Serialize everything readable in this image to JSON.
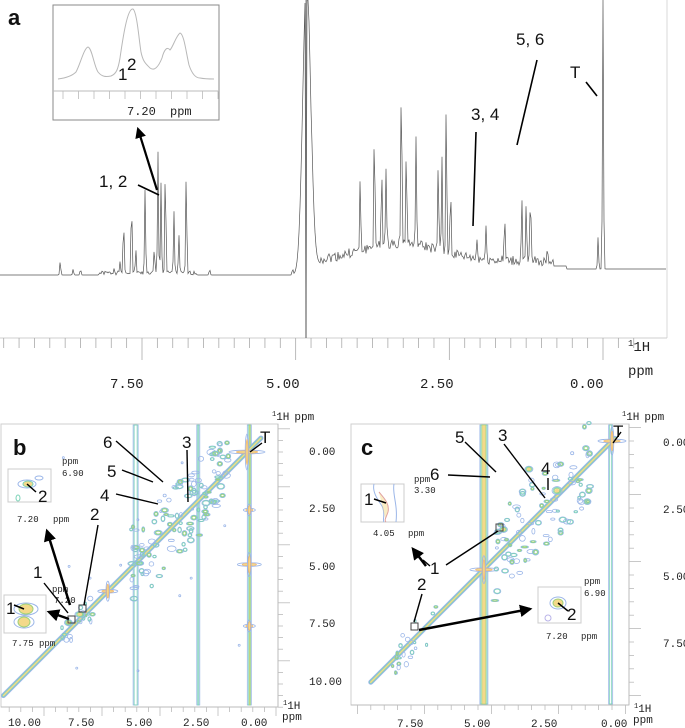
{
  "figure": {
    "panels": [
      {
        "id": "a",
        "label": "a",
        "type": "1D 1H NMR spectrum"
      },
      {
        "id": "b",
        "label": "b",
        "type": "2D 1H-1H COSY/TOCSY contour map"
      },
      {
        "id": "c",
        "label": "c",
        "type": "2D 1H-1H COSY/TOCSY contour map"
      }
    ],
    "colors": {
      "spectrum_line": "#555555",
      "axis": "#aaaaaa",
      "contour_outer": "#9bb6e8",
      "contour_mid": "#7dd3b8",
      "contour_green": "#9fd07a",
      "contour_inner": "#f3d98a",
      "contour_core": "#f0b070",
      "annotation": "#111111"
    }
  },
  "chart_data": [
    {
      "panel": "a",
      "type": "line",
      "title": "",
      "xlabel": "1H ppm",
      "ylabel": "",
      "x_axis_reversed": true,
      "xlim": [
        9.6,
        -0.5
      ],
      "x_ticks": [
        "7.50",
        "5.00",
        "2.50",
        "0.00"
      ],
      "x_unit_label_top": "1H",
      "x_unit_label_bottom": "ppm",
      "annotations": [
        {
          "text": "1, 2",
          "ppm": 7.2
        },
        {
          "text": "3, 4",
          "ppm": 2.05
        },
        {
          "text": "5, 6",
          "ppm": 1.3
        },
        {
          "text": "T",
          "ppm": 0.0
        }
      ],
      "peaks": [
        {
          "ppm": 8.83,
          "h": 0.07
        },
        {
          "ppm": 8.62,
          "h": 0.03
        },
        {
          "ppm": 8.5,
          "h": 0.03
        },
        {
          "ppm": 7.95,
          "h": 0.03
        },
        {
          "ppm": 7.86,
          "h": 0.05
        },
        {
          "ppm": 7.8,
          "h": 0.28
        },
        {
          "ppm": 7.67,
          "h": 0.38
        },
        {
          "ppm": 7.6,
          "h": 0.12
        },
        {
          "ppm": 7.45,
          "h": 0.43
        },
        {
          "ppm": 7.3,
          "h": 0.12
        },
        {
          "ppm": 7.24,
          "h": 0.6
        },
        {
          "ppm": 7.19,
          "h": 0.46
        },
        {
          "ppm": 7.12,
          "h": 0.56
        },
        {
          "ppm": 6.98,
          "h": 0.31
        },
        {
          "ppm": 6.9,
          "h": 0.2
        },
        {
          "ppm": 6.78,
          "h": 0.51
        },
        {
          "ppm": 6.4,
          "h": 0.03
        },
        {
          "ppm": 5.05,
          "h": 0.03
        },
        {
          "ppm": 4.82,
          "h": 1.5
        },
        {
          "ppm": 3.95,
          "h": 0.35
        },
        {
          "ppm": 3.72,
          "h": 0.62
        },
        {
          "ppm": 3.6,
          "h": 0.4
        },
        {
          "ppm": 3.53,
          "h": 0.37
        },
        {
          "ppm": 3.28,
          "h": 0.9
        },
        {
          "ppm": 3.2,
          "h": 0.5
        },
        {
          "ppm": 3.04,
          "h": 0.54
        },
        {
          "ppm": 2.68,
          "h": 0.43
        },
        {
          "ppm": 2.62,
          "h": 0.47
        },
        {
          "ppm": 2.55,
          "h": 0.75
        },
        {
          "ppm": 2.48,
          "h": 0.35
        },
        {
          "ppm": 2.05,
          "h": 0.1
        },
        {
          "ppm": 1.9,
          "h": 0.18
        },
        {
          "ppm": 1.6,
          "h": 0.22
        },
        {
          "ppm": 1.32,
          "h": 0.31
        },
        {
          "ppm": 1.25,
          "h": 0.27
        },
        {
          "ppm": 1.18,
          "h": 0.35
        },
        {
          "ppm": 0.9,
          "h": 0.06
        },
        {
          "ppm": 0.08,
          "h": 0.16
        },
        {
          "ppm": 0.0,
          "h": 1.5
        }
      ],
      "inset": {
        "x_tick": "7.20",
        "x_unit": "ppm",
        "labels": [
          "1",
          "2"
        ]
      }
    },
    {
      "panel": "b",
      "type": "heatmap",
      "title": "",
      "xlabel": "1H ppm",
      "ylabel": "1H ppm",
      "xlim": [
        11.5,
        -1.5
      ],
      "ylim": [
        -1.0,
        11.5
      ],
      "x_ticks": [
        "10.00",
        "7.50",
        "5.00",
        "2.50",
        "0.00"
      ],
      "y_ticks": [
        "0.00",
        "2.50",
        "5.00",
        "7.50",
        "10.00"
      ],
      "annotations": [
        "1",
        "2",
        "3",
        "4",
        "5",
        "6",
        "T"
      ],
      "insets": [
        {
          "labels": [
            "2"
          ],
          "x_tick": "7.20",
          "x_unit": "ppm",
          "y_unit": "ppm",
          "y_tick": "6.90"
        },
        {
          "labels": [
            "1"
          ],
          "x_tick": "7.75",
          "x_unit": "ppm",
          "y_unit": "ppm",
          "y_tick": "7.20"
        }
      ]
    },
    {
      "panel": "c",
      "type": "heatmap",
      "title": "",
      "xlabel": "1H ppm",
      "ylabel": "1H ppm",
      "xlim": [
        9.4,
        -0.7
      ],
      "ylim": [
        -0.7,
        9.4
      ],
      "x_ticks": [
        "7.50",
        "5.00",
        "2.50",
        "0.00"
      ],
      "y_ticks": [
        "0.00",
        "2.50",
        "5.00",
        "7.50"
      ],
      "annotations": [
        "1",
        "2",
        "3",
        "4",
        "5",
        "6",
        "T"
      ],
      "insets": [
        {
          "labels": [
            "1"
          ],
          "x_tick": "4.05",
          "x_unit": "ppm",
          "y_unit": "ppm",
          "y_tick": "3.30"
        },
        {
          "labels": [
            "2"
          ],
          "x_tick": "7.20",
          "x_unit": "ppm",
          "y_unit": "ppm",
          "y_tick": "6.90"
        }
      ]
    }
  ],
  "text": {
    "a_label": "a",
    "b_label": "b",
    "c_label": "c",
    "ann_12": "1, 2",
    "ann_34": "3, 4",
    "ann_56": "5, 6",
    "ann_T": "T",
    "ann_1": "1",
    "ann_2": "2",
    "ann_3": "3",
    "ann_4": "4",
    "ann_5": "5",
    "ann_6": "6",
    "unit_1H": "1H",
    "unit_ppm": "ppm",
    "a_ticks": [
      "7.50",
      "5.00",
      "2.50",
      "0.00"
    ],
    "b_xticks": [
      "10.00",
      "7.50",
      "5.00",
      "2.50",
      "0.00"
    ],
    "b_yticks": [
      "0.00",
      "2.50",
      "5.00",
      "7.50",
      "10.00"
    ],
    "c_xticks": [
      "7.50",
      "5.00",
      "2.50",
      "0.00"
    ],
    "c_yticks": [
      "0.00",
      "2.50",
      "5.00",
      "7.50"
    ],
    "inset_720": "7.20",
    "inset_690": "6.90",
    "inset_775": "7.75",
    "inset_405": "4.05",
    "inset_330": "3.30"
  }
}
